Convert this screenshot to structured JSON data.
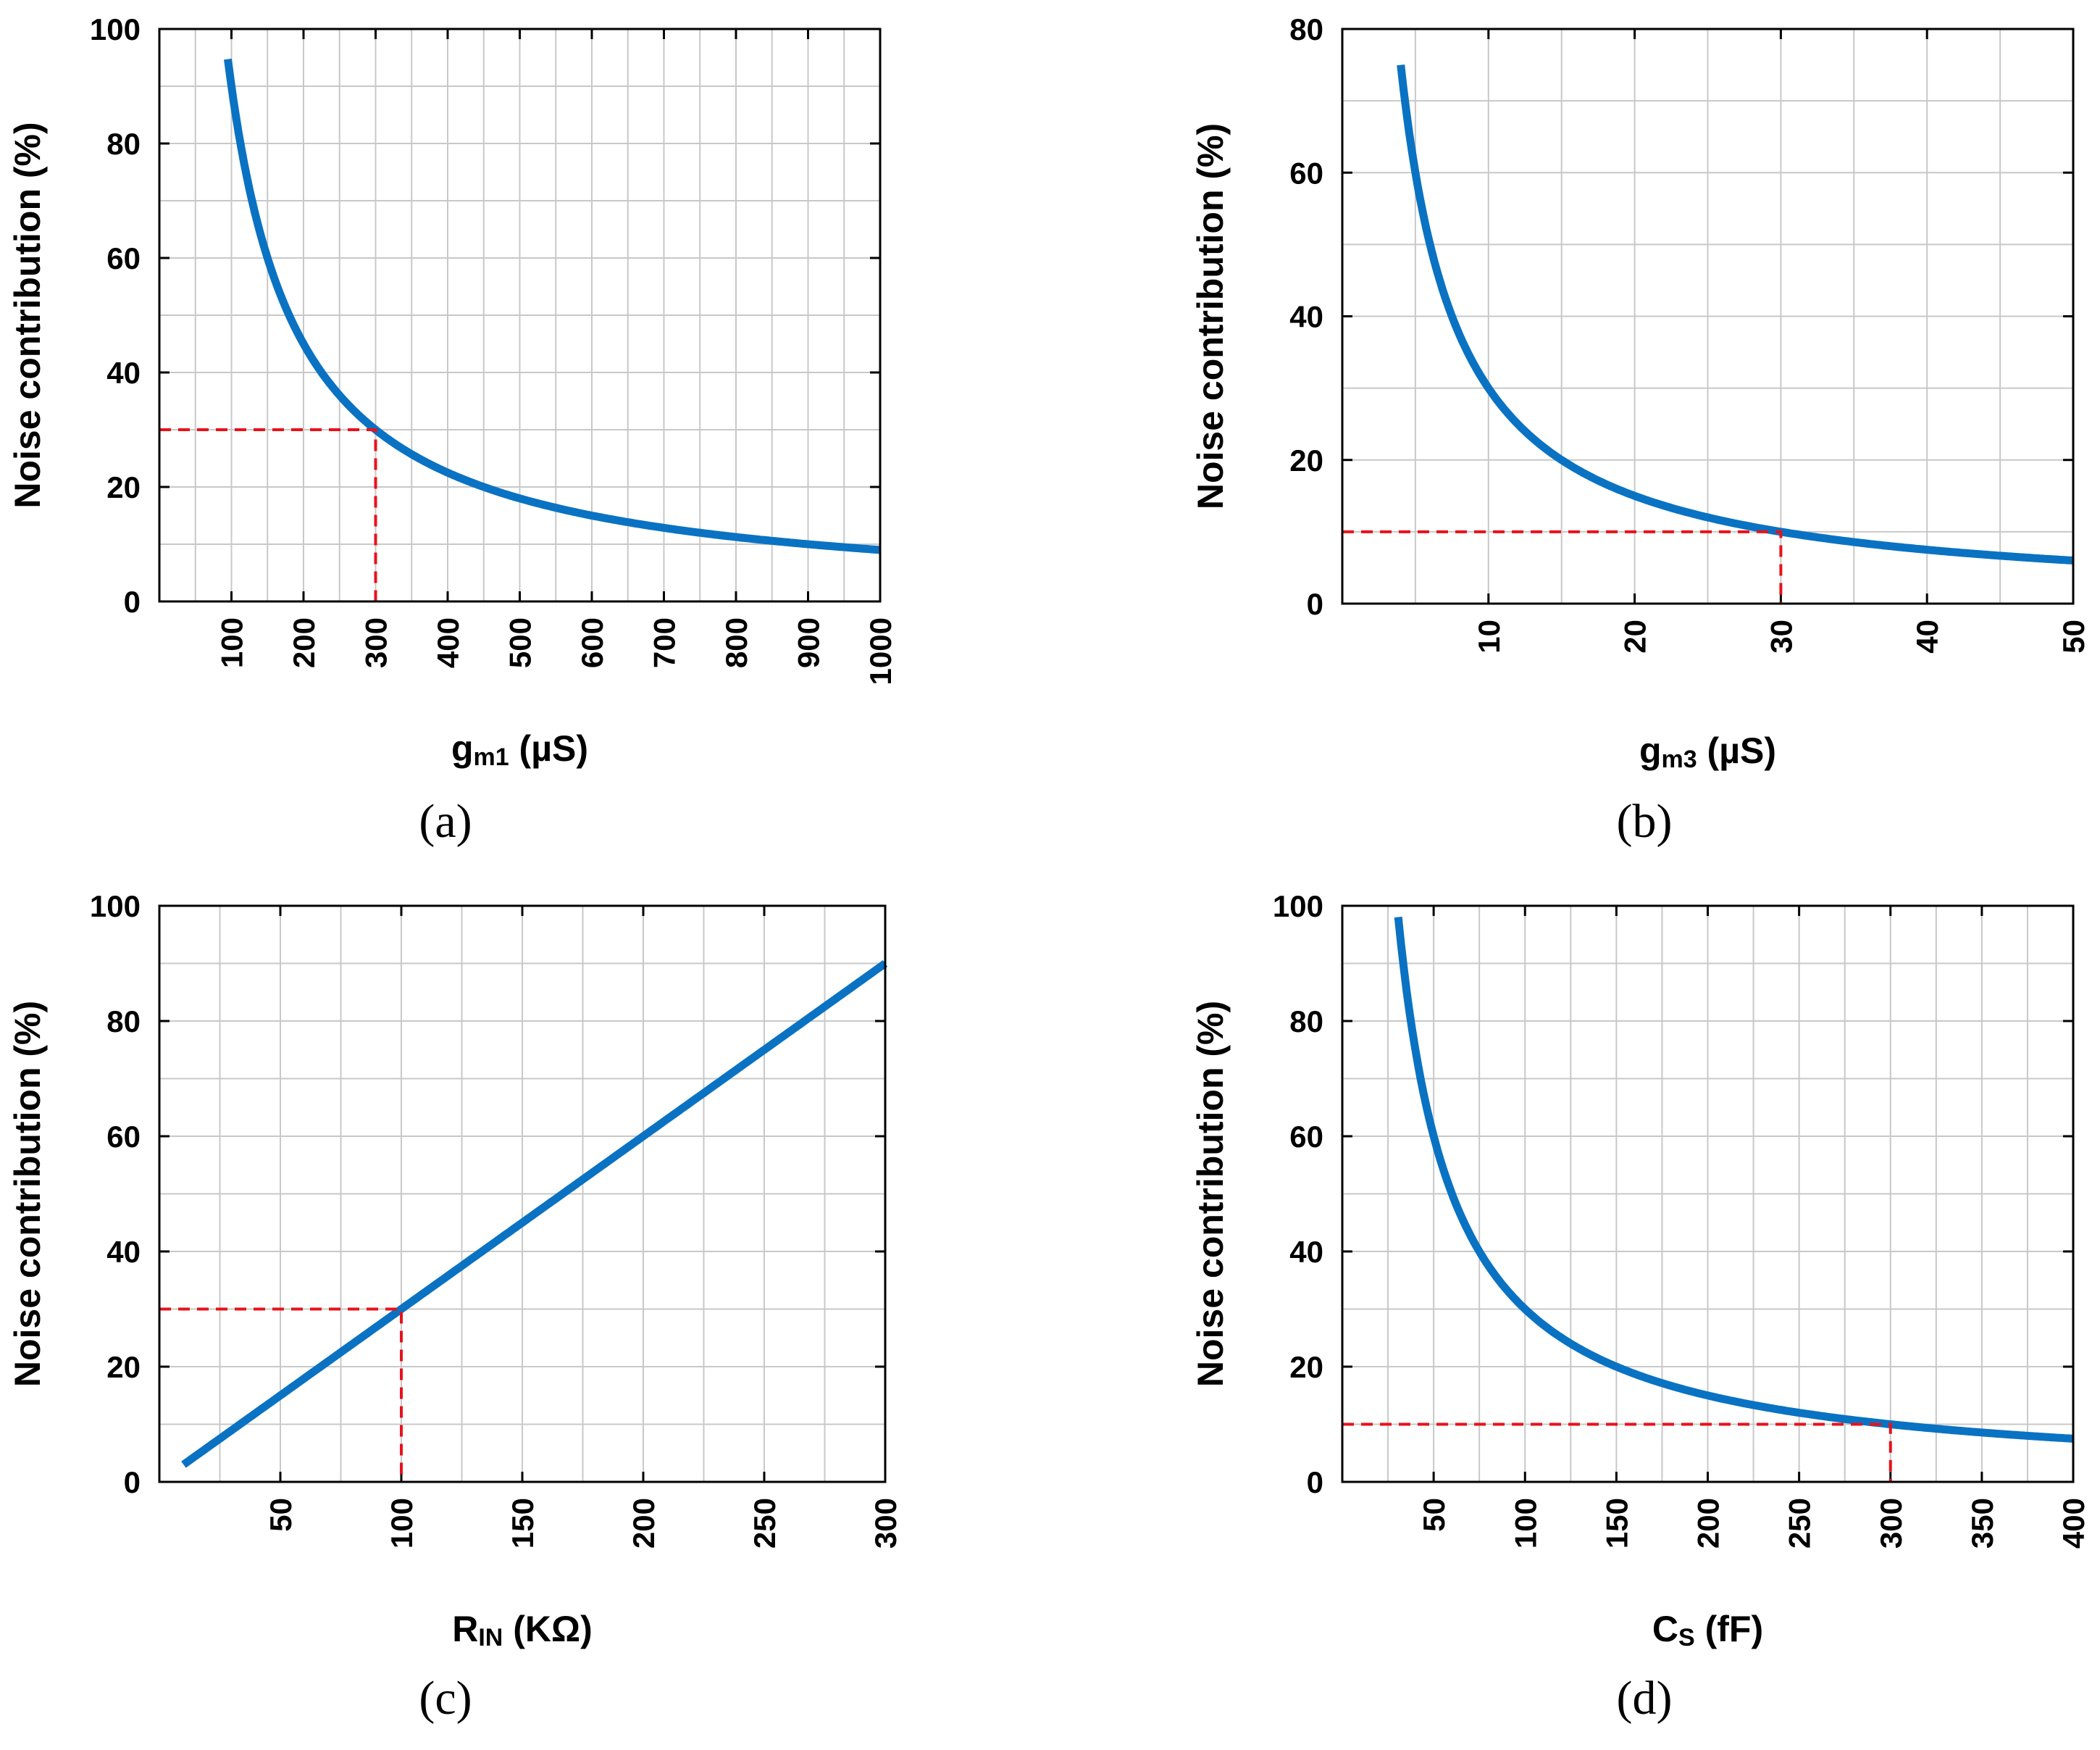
{
  "colors": {
    "curve": "#0a72c2",
    "marker": "#e8121b",
    "grid": "#c8c8c8"
  },
  "chart_data": [
    {
      "type": "line",
      "panel": "(a)",
      "ylabel": "Noise contribution (%)",
      "xlabel_main": "g",
      "xlabel_sub": "m1",
      "xlabel_unit": " (µS)",
      "xlim": [
        0,
        1000
      ],
      "ylim": [
        0,
        100
      ],
      "xticks": [
        100,
        200,
        300,
        400,
        500,
        600,
        700,
        800,
        900,
        1000
      ],
      "xtick_labels": [
        "100",
        "200",
        "300",
        "400",
        "500",
        "600",
        "700",
        "800",
        "900",
        "1000"
      ],
      "yticks": [
        0,
        20,
        40,
        60,
        80,
        100
      ],
      "ytick_labels": [
        "0",
        "20",
        "40",
        "60",
        "80",
        "100"
      ],
      "grid": true,
      "series": [
        {
          "name": "noise",
          "function": "reciprocal",
          "k": 9000,
          "x_range": [
            95,
            1000
          ]
        }
      ],
      "marker": {
        "x": 300,
        "y": 30
      }
    },
    {
      "type": "line",
      "panel": "(b)",
      "ylabel": "Noise contribution (%)",
      "xlabel_main": "g",
      "xlabel_sub": "m3",
      "xlabel_unit": " (µS)",
      "xlim": [
        0,
        50
      ],
      "ylim": [
        0,
        80
      ],
      "xticks": [
        10,
        20,
        30,
        40,
        50
      ],
      "xtick_labels": [
        "10",
        "20",
        "30",
        "40",
        "50"
      ],
      "yticks": [
        0,
        20,
        40,
        60,
        80
      ],
      "ytick_labels": [
        "0",
        "20",
        "40",
        "60",
        "80"
      ],
      "grid": true,
      "series": [
        {
          "name": "noise",
          "function": "reciprocal",
          "k": 300,
          "x_range": [
            4,
            50
          ]
        }
      ],
      "marker": {
        "x": 30,
        "y": 10
      }
    },
    {
      "type": "line",
      "panel": "(c)",
      "ylabel": "Noise contribution (%)",
      "xlabel_main": "R",
      "xlabel_sub": "IN",
      "xlabel_unit": " (KΩ)",
      "xlim": [
        0,
        300
      ],
      "ylim": [
        0,
        100
      ],
      "xticks": [
        50,
        100,
        150,
        200,
        250,
        300
      ],
      "xtick_labels": [
        "50",
        "100",
        "150",
        "200",
        "250",
        "300"
      ],
      "yticks": [
        0,
        20,
        40,
        60,
        80,
        100
      ],
      "ytick_labels": [
        "0",
        "20",
        "40",
        "60",
        "80",
        "100"
      ],
      "grid": true,
      "series": [
        {
          "name": "noise",
          "function": "linear",
          "k": 0.3,
          "x_range": [
            10,
            300
          ]
        }
      ],
      "marker": {
        "x": 100,
        "y": 30
      }
    },
    {
      "type": "line",
      "panel": "(d)",
      "ylabel": "Noise contribution (%)",
      "xlabel_main": "C",
      "xlabel_sub": "S",
      "xlabel_unit": " (fF)",
      "xlim": [
        0,
        400
      ],
      "ylim": [
        0,
        100
      ],
      "xticks": [
        50,
        100,
        150,
        200,
        250,
        300,
        350,
        400
      ],
      "xtick_labels": [
        "50",
        "100",
        "150",
        "200",
        "250",
        "300",
        "350",
        "400"
      ],
      "yticks": [
        0,
        20,
        40,
        60,
        80,
        100
      ],
      "ytick_labels": [
        "0",
        "20",
        "40",
        "60",
        "80",
        "100"
      ],
      "grid": true,
      "series": [
        {
          "name": "noise",
          "function": "reciprocal",
          "k": 3000,
          "x_range": [
            30.6,
            400
          ]
        }
      ],
      "marker": {
        "x": 300,
        "y": 10
      }
    }
  ]
}
